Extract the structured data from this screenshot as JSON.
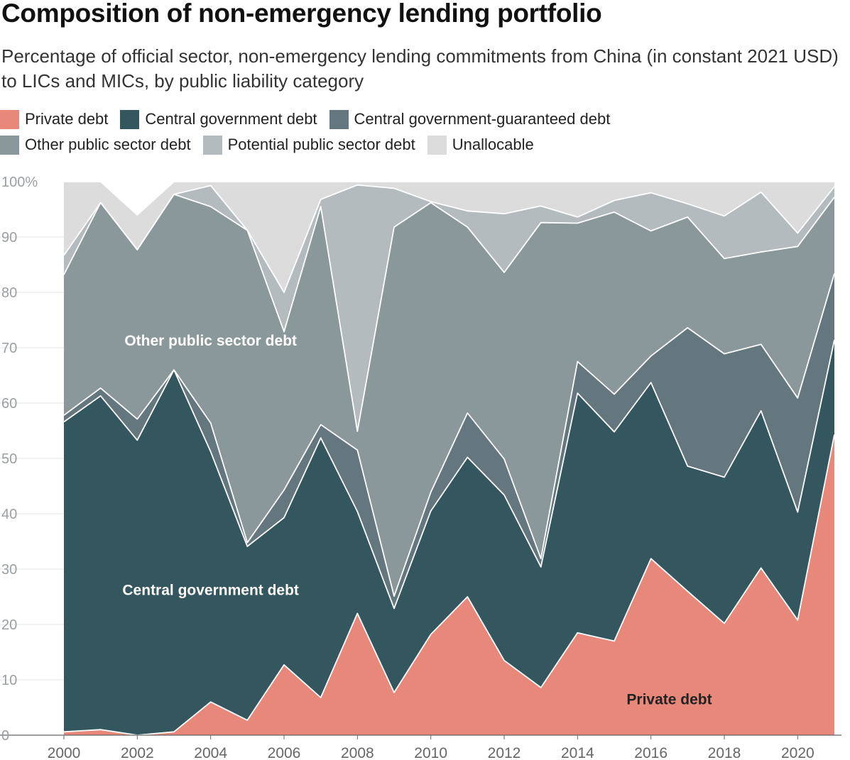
{
  "title": "Composition of non-emergency lending portfolio",
  "subtitle": "Percentage of official sector, non-emergency lending commitments from China (in constant 2021 USD) to LICs and MICs, by public liability category",
  "colors": {
    "private": "#e8887a",
    "central": "#33565f",
    "guaranteed": "#64777e",
    "other_public": "#8a989c",
    "potential": "#b4bbbe",
    "unallocable": "#dcdcdd"
  },
  "legend": [
    {
      "label": "Private debt",
      "color": "#e8887a"
    },
    {
      "label": "Central government debt",
      "color": "#33565f"
    },
    {
      "label": "Central government-guaranteed debt",
      "color": "#64777e"
    },
    {
      "label": "Other public sector debt",
      "color": "#8a989c"
    },
    {
      "label": "Potential public sector debt",
      "color": "#b4bbbe"
    },
    {
      "label": "Unallocable",
      "color": "#dcdcdd"
    }
  ],
  "chart_data": {
    "type": "area",
    "stacked": true,
    "x": [
      2000,
      2001,
      2002,
      2003,
      2004,
      2005,
      2006,
      2007,
      2008,
      2009,
      2010,
      2011,
      2012,
      2013,
      2014,
      2015,
      2016,
      2017,
      2018,
      2019,
      2020,
      2021
    ],
    "series": [
      {
        "name": "Private debt",
        "key": "private",
        "values": [
          0.6,
          1.0,
          0.0,
          0.6,
          6.0,
          2.7,
          12.7,
          6.8,
          22.0,
          7.7,
          18.2,
          25.0,
          13.5,
          8.6,
          18.5,
          17.0,
          31.9,
          26.0,
          20.2,
          30.2,
          20.8,
          54.3
        ]
      },
      {
        "name": "Central government debt",
        "key": "central",
        "values": [
          56.0,
          60.3,
          53.3,
          65.4,
          45.2,
          31.4,
          26.6,
          46.9,
          18.4,
          15.2,
          22.3,
          25.2,
          29.9,
          21.8,
          43.3,
          37.8,
          31.8,
          22.6,
          26.4,
          28.4,
          19.5,
          17.1
        ]
      },
      {
        "name": "Central government-guaranteed debt",
        "key": "guaranteed",
        "values": [
          1.2,
          1.4,
          3.8,
          0.0,
          5.2,
          0.7,
          5.0,
          2.4,
          11.1,
          2.2,
          3.4,
          8.0,
          6.5,
          1.5,
          5.7,
          6.8,
          4.8,
          25.0,
          22.3,
          12.0,
          20.6,
          12.0
        ]
      },
      {
        "name": "Other public sector debt",
        "key": "other_public",
        "values": [
          25.4,
          33.5,
          30.6,
          31.7,
          39.1,
          56.4,
          28.6,
          39.4,
          3.4,
          66.7,
          52.3,
          33.6,
          33.7,
          60.7,
          25.0,
          32.9,
          22.6,
          20.0,
          17.2,
          16.7,
          27.4,
          13.8
        ]
      },
      {
        "name": "Potential public sector debt",
        "key": "potential",
        "values": [
          3.5,
          0.0,
          0.0,
          0.0,
          3.8,
          0.0,
          7.1,
          1.3,
          44.5,
          7.0,
          0.2,
          2.9,
          10.6,
          3.0,
          1.1,
          2.1,
          6.9,
          2.4,
          7.7,
          10.8,
          2.4,
          1.9
        ]
      },
      {
        "name": "Unallocable",
        "key": "unallocable",
        "values": [
          13.3,
          3.8,
          6.3,
          2.3,
          0.7,
          8.8,
          20.0,
          3.2,
          0.6,
          1.2,
          3.6,
          5.3,
          5.8,
          4.4,
          6.4,
          3.4,
          2.0,
          4.0,
          6.2,
          1.9,
          9.3,
          0.9
        ]
      }
    ],
    "ylim": [
      0,
      100
    ],
    "y_ticks": [
      "0",
      "10",
      "20",
      "30",
      "40",
      "50",
      "60",
      "70",
      "80",
      "90",
      "100%"
    ],
    "x_ticks": [
      "2000",
      "2002",
      "2004",
      "2006",
      "2008",
      "2010",
      "2012",
      "2014",
      "2016",
      "2018",
      "2020"
    ],
    "annotations": [
      {
        "text": "Other public sector debt",
        "x": 2004.0,
        "y": 70.4,
        "color": "#ffffff"
      },
      {
        "text": "Central government debt",
        "x": 2004.0,
        "y": 25.3,
        "color": "#ffffff"
      },
      {
        "text": "Private debt",
        "x": 2016.5,
        "y": 5.6,
        "color": "#222222"
      }
    ],
    "grid": true,
    "legend_position": "top-left"
  }
}
